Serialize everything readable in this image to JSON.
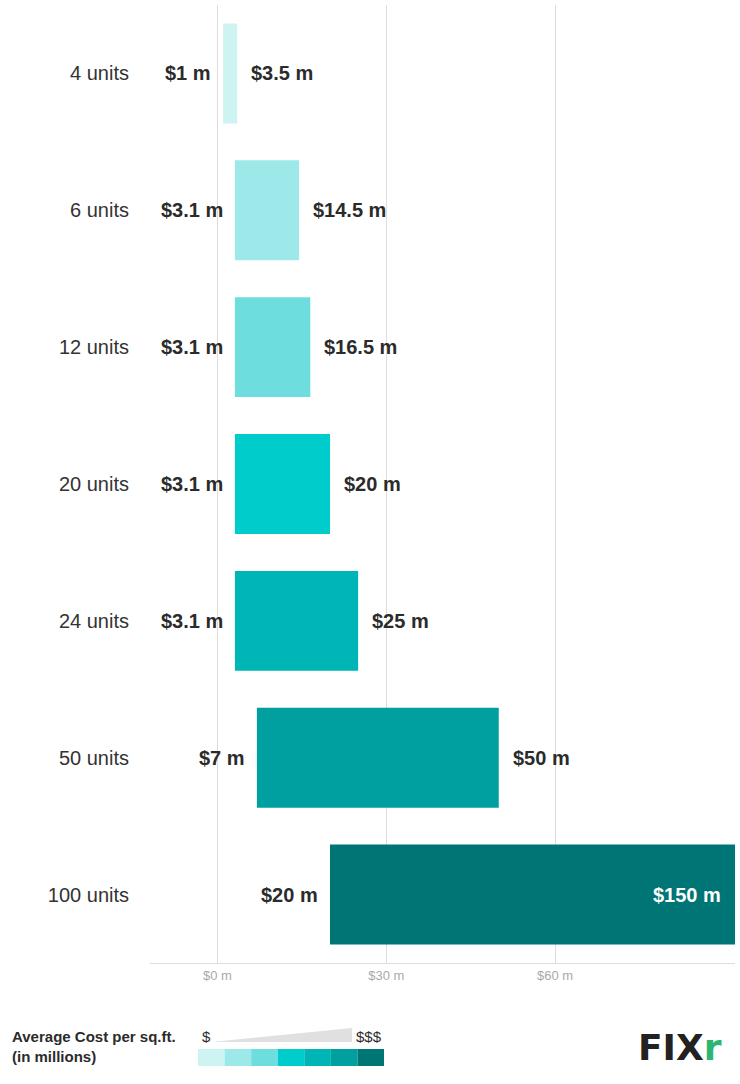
{
  "chart_data": {
    "type": "bar",
    "orientation": "horizontal",
    "categories": [
      "4 units",
      "6 units",
      "12 units",
      "20 units",
      "24 units",
      "50 units",
      "100 units"
    ],
    "values": [
      [
        1,
        3.5
      ],
      [
        3.1,
        14.5
      ],
      [
        3.1,
        16.5
      ],
      [
        3.1,
        20
      ],
      [
        3.1,
        25
      ],
      [
        7,
        50
      ],
      [
        20,
        150
      ]
    ],
    "value_labels": [
      [
        "$1 m",
        "$3.5 m"
      ],
      [
        "$3.1 m",
        "$14.5 m"
      ],
      [
        "$3.1 m",
        "$16.5 m"
      ],
      [
        "$3.1 m",
        "$20 m"
      ],
      [
        "$3.1 m",
        "$25 m"
      ],
      [
        "$7 m",
        "$50 m"
      ],
      [
        "$20 m",
        "$150 m"
      ]
    ],
    "data_labels": true,
    "colors": [
      "#cdf3f3",
      "#9de9e9",
      "#6ddddd",
      "#00cccc",
      "#00b5b5",
      "#00a0a0",
      "#007575"
    ],
    "xlim": [
      -12,
      92
    ],
    "xticks": [
      {
        "value": 0,
        "label": "$0 m"
      },
      {
        "value": 30,
        "label": "$30 m"
      },
      {
        "value": 60,
        "label": "$60 m"
      }
    ],
    "grid": true,
    "legend_title": [
      "Average Cost per sq.ft.",
      "(in millions)"
    ],
    "legend_low": "$",
    "legend_high": "$$$",
    "brand": "Fixr"
  }
}
